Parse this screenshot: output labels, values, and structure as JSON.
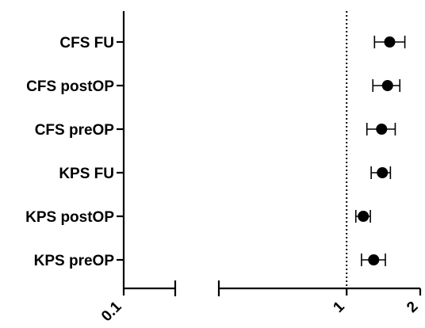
{
  "chart_data": {
    "type": "scatter",
    "subtype": "forest-plot",
    "title": "",
    "xlabel": "",
    "ylabel": "",
    "x_scale": "log",
    "xlim": [
      0.1,
      2
    ],
    "x_axis_break": [
      0.2,
      0.3
    ],
    "reference_line": {
      "x": 1,
      "style": "dotted"
    },
    "x_ticks": [
      {
        "value": 0.1,
        "label": "0.1"
      },
      {
        "value": 1,
        "label": "1"
      },
      {
        "value": 2,
        "label": "2"
      }
    ],
    "categories": [
      "CFS FU",
      "CFS postOP",
      "CFS preOP",
      "KPS FU",
      "KPS postOP",
      "KPS preOP"
    ],
    "series": [
      {
        "points": [
          {
            "label": "CFS FU",
            "estimate": 1.5,
            "lower": 1.3,
            "upper": 1.73
          },
          {
            "label": "CFS postOP",
            "estimate": 1.47,
            "lower": 1.28,
            "upper": 1.65
          },
          {
            "label": "CFS preOP",
            "estimate": 1.39,
            "lower": 1.21,
            "upper": 1.58
          },
          {
            "label": "KPS FU",
            "estimate": 1.4,
            "lower": 1.26,
            "upper": 1.51
          },
          {
            "label": "KPS postOP",
            "estimate": 1.17,
            "lower": 1.09,
            "upper": 1.25
          },
          {
            "label": "KPS preOP",
            "estimate": 1.29,
            "lower": 1.15,
            "upper": 1.44
          }
        ]
      }
    ],
    "grid": false,
    "legend": "none",
    "colors": {
      "marker": "#000000",
      "axis": "#000000"
    }
  }
}
